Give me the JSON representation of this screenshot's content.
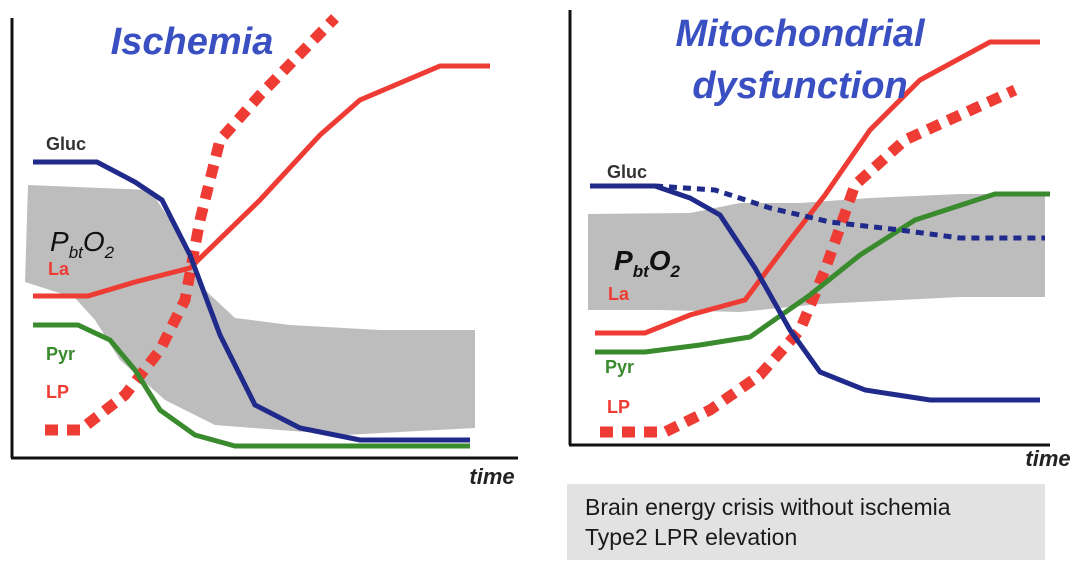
{
  "panels": [
    {
      "title_lines": [
        "Ischemia"
      ],
      "time_label": "time",
      "labels": {
        "gluc": "Gluc",
        "pbto2": {
          "base": "P",
          "sub1": "bt",
          "mid": "O",
          "sub2": "2"
        },
        "la": "La",
        "pyr": "Pyr",
        "lp": "LP"
      }
    },
    {
      "title_lines": [
        "Mitochondrial",
        "dysfunction"
      ],
      "time_label": "time",
      "labels": {
        "gluc": "Gluc",
        "pbto2": {
          "base": "P",
          "sub1": "bt",
          "mid": "O",
          "sub2": "2"
        },
        "la": "La",
        "pyr": "Pyr",
        "lp": "LP"
      }
    }
  ],
  "note": {
    "line1": "Brain energy crisis without ischemia",
    "line2": "Type2 LPR elevation"
  },
  "colors": {
    "title": "#3a4fc1",
    "gluc": "#1f2a8a",
    "lactate": "#ee3b33",
    "pyruvate": "#3a8a2e",
    "pbto2_band": "#bdbdbd",
    "axis": "#111111"
  }
}
